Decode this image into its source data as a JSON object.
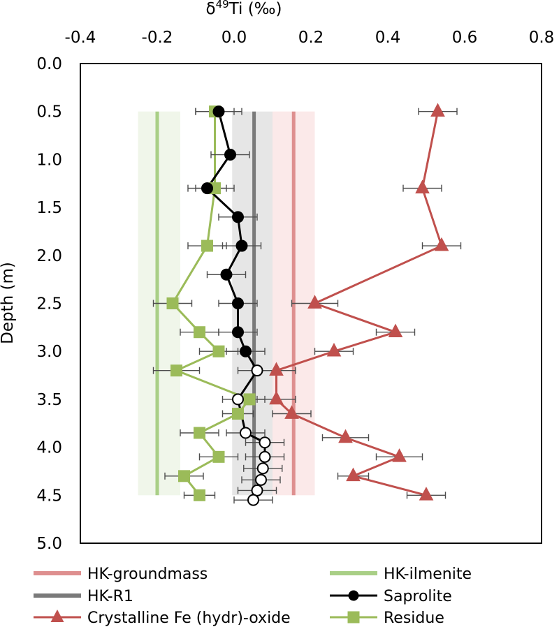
{
  "chart_data": {
    "type": "scatter",
    "title": "",
    "xlabel_main": "δ",
    "xlabel_sup": "49",
    "xlabel_rest": "Ti (‰)",
    "ylabel": "Depth (m)",
    "xlim": [
      -0.4,
      0.8
    ],
    "ylim": [
      0.0,
      5.0
    ],
    "y_inverted": true,
    "x_ticks": [
      "-0.4",
      "-0.2",
      "0.0",
      "0.2",
      "0.4",
      "0.6",
      "0.8"
    ],
    "y_ticks": [
      "0.0",
      "0.5",
      "1.0",
      "1.5",
      "2.0",
      "2.5",
      "3.0",
      "3.5",
      "4.0",
      "4.5",
      "5.0"
    ],
    "depth_range": [
      0.5,
      4.5
    ],
    "colors": {
      "groundmass": "#de8f8f",
      "groundmass_band": "#fbe7e7",
      "ilmenite": "#a9cf86",
      "ilmenite_band": "#eef5e8",
      "r1": "#7a7a7a",
      "r1_band": "#dedede",
      "saprolite": "#000000",
      "fe": "#c0504d",
      "residue": "#9bbb59"
    },
    "reference_bands": [
      {
        "name": "HK-groundmass",
        "center": 0.155,
        "low": 0.1,
        "high": 0.21
      },
      {
        "name": "HK-ilmenite",
        "center": -0.2,
        "low": -0.25,
        "high": -0.14
      },
      {
        "name": "HK-R1",
        "center": 0.052,
        "low": -0.005,
        "high": 0.1
      }
    ],
    "series": [
      {
        "name": "Crystalline Fe (hydr)-oxide",
        "marker": "triangle",
        "points": [
          {
            "x": 0.53,
            "y": 0.5,
            "err": 0.05
          },
          {
            "x": 0.49,
            "y": 1.3,
            "err": 0.05
          },
          {
            "x": 0.54,
            "y": 1.9,
            "err": 0.05
          },
          {
            "x": 0.21,
            "y": 2.5,
            "err": 0.06
          },
          {
            "x": 0.42,
            "y": 2.8,
            "err": 0.05
          },
          {
            "x": 0.26,
            "y": 3.0,
            "err": 0.05
          },
          {
            "x": 0.11,
            "y": 3.2,
            "err": 0.05
          },
          {
            "x": 0.11,
            "y": 3.5,
            "err": 0.05
          },
          {
            "x": 0.15,
            "y": 3.65,
            "err": 0.05
          },
          {
            "x": 0.29,
            "y": 3.9,
            "err": 0.06
          },
          {
            "x": 0.43,
            "y": 4.1,
            "err": 0.06
          },
          {
            "x": 0.31,
            "y": 4.3,
            "err": 0.04
          },
          {
            "x": 0.5,
            "y": 4.5,
            "err": 0.05
          }
        ]
      },
      {
        "name": "Saprolite",
        "marker": "circle",
        "points": [
          {
            "x": -0.04,
            "y": 0.5,
            "err": 0.06,
            "hollow": false
          },
          {
            "x": -0.01,
            "y": 0.95,
            "err": 0.05,
            "hollow": false
          },
          {
            "x": -0.07,
            "y": 1.3,
            "err": 0.05,
            "hollow": false
          },
          {
            "x": 0.01,
            "y": 1.6,
            "err": 0.05,
            "hollow": false
          },
          {
            "x": 0.02,
            "y": 1.9,
            "err": 0.05,
            "hollow": false
          },
          {
            "x": -0.02,
            "y": 2.2,
            "err": 0.05,
            "hollow": false
          },
          {
            "x": 0.01,
            "y": 2.5,
            "err": 0.05,
            "hollow": false
          },
          {
            "x": 0.01,
            "y": 2.8,
            "err": 0.05,
            "hollow": false
          },
          {
            "x": 0.03,
            "y": 3.0,
            "err": 0.05,
            "hollow": false
          },
          {
            "x": 0.06,
            "y": 3.2,
            "err": 0.05,
            "hollow": true
          },
          {
            "x": 0.01,
            "y": 3.5,
            "err": 0.04,
            "hollow": true
          },
          {
            "x": 0.03,
            "y": 3.85,
            "err": 0.05,
            "hollow": true
          },
          {
            "x": 0.08,
            "y": 3.95,
            "err": 0.05,
            "hollow": true
          },
          {
            "x": 0.08,
            "y": 4.1,
            "err": 0.05,
            "hollow": true
          },
          {
            "x": 0.075,
            "y": 4.22,
            "err": 0.05,
            "hollow": true
          },
          {
            "x": 0.07,
            "y": 4.34,
            "err": 0.05,
            "hollow": true
          },
          {
            "x": 0.06,
            "y": 4.45,
            "err": 0.05,
            "hollow": true
          },
          {
            "x": 0.05,
            "y": 4.55,
            "err": 0.05,
            "hollow": true
          }
        ]
      },
      {
        "name": "Residue",
        "marker": "square",
        "points": [
          {
            "x": -0.05,
            "y": 0.5,
            "err": 0.05
          },
          {
            "x": -0.05,
            "y": 1.3,
            "err": 0.05
          },
          {
            "x": -0.07,
            "y": 1.9,
            "err": 0.05
          },
          {
            "x": -0.16,
            "y": 2.5,
            "err": 0.05
          },
          {
            "x": -0.09,
            "y": 2.8,
            "err": 0.05
          },
          {
            "x": -0.04,
            "y": 3.0,
            "err": 0.05
          },
          {
            "x": -0.15,
            "y": 3.2,
            "err": 0.06
          },
          {
            "x": 0.04,
            "y": 3.5,
            "err": 0.04
          },
          {
            "x": 0.01,
            "y": 3.65,
            "err": 0.04
          },
          {
            "x": -0.09,
            "y": 3.85,
            "err": 0.05
          },
          {
            "x": -0.04,
            "y": 4.1,
            "err": 0.05
          },
          {
            "x": -0.13,
            "y": 4.3,
            "err": 0.05
          },
          {
            "x": -0.09,
            "y": 4.5,
            "err": 0.04
          }
        ]
      }
    ],
    "legend": {
      "placement": "bottom",
      "items": [
        {
          "label": "HK-groundmass",
          "kind": "band",
          "color_key": "groundmass"
        },
        {
          "label": "HK-ilmenite",
          "kind": "band",
          "color_key": "ilmenite"
        },
        {
          "label": "HK-R1",
          "kind": "band",
          "color_key": "r1"
        },
        {
          "label": "Saprolite",
          "kind": "circle",
          "color_key": "saprolite"
        },
        {
          "label": "Crystalline Fe (hydr)-oxide",
          "kind": "triangle",
          "color_key": "fe"
        },
        {
          "label": "Residue",
          "kind": "square",
          "color_key": "residue"
        }
      ]
    }
  }
}
